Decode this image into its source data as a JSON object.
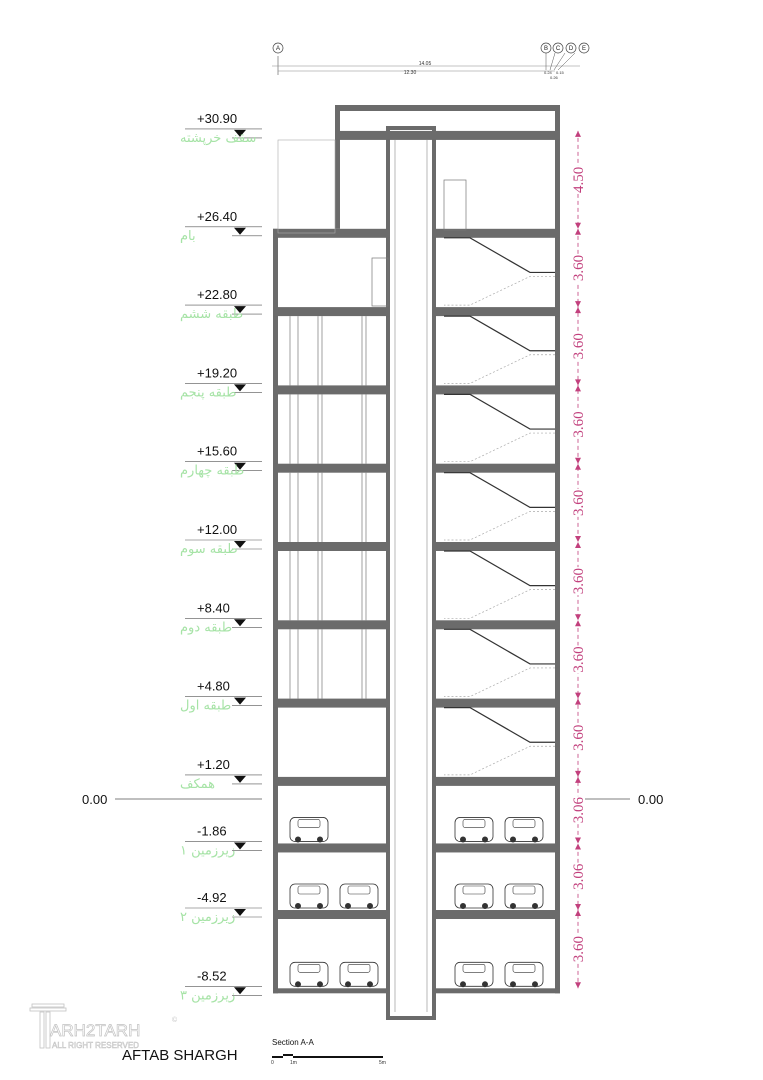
{
  "grid_axes": [
    "A",
    "B",
    "C",
    "D",
    "E"
  ],
  "top_dimensions": {
    "overall": "14.05",
    "inner": "12.30",
    "small": [
      "0.24",
      "0.15",
      "0.26"
    ]
  },
  "levels": [
    {
      "elevation": "+30.90",
      "name": "سقف خرپشته",
      "value": 30.9
    },
    {
      "elevation": "+26.40",
      "name": "بام",
      "value": 26.4
    },
    {
      "elevation": "+22.80",
      "name": "طبقه ششم",
      "value": 22.8
    },
    {
      "elevation": "+19.20",
      "name": "طبقه پنجم",
      "value": 19.2
    },
    {
      "elevation": "+15.60",
      "name": "طبقه چهارم",
      "value": 15.6
    },
    {
      "elevation": "+12.00",
      "name": "طبقه سوم",
      "value": 12.0
    },
    {
      "elevation": "+8.40",
      "name": "طبقه دوم",
      "value": 8.4
    },
    {
      "elevation": "+4.80",
      "name": "طبقه اول",
      "value": 4.8
    },
    {
      "elevation": "+1.20",
      "name": "همکف",
      "value": 1.2
    },
    {
      "elevation": "-1.86",
      "name": "زیرزمین ۱",
      "value": -1.86
    },
    {
      "elevation": "-4.92",
      "name": "زیرزمین ۲",
      "value": -4.92
    },
    {
      "elevation": "-8.52",
      "name": "زیرزمین ۳",
      "value": -8.52
    }
  ],
  "ground_level": {
    "left": "0.00",
    "right": "0.00"
  },
  "floor_heights": [
    "4.50",
    "3.60",
    "3.60",
    "3.60",
    "3.60",
    "3.60",
    "3.60",
    "3.60",
    "3.06",
    "3.06",
    "3.60"
  ],
  "title": "AFTAB SHARGH",
  "section_label": "Section A-A",
  "scale_bar": {
    "labels": [
      "0",
      "1m",
      "5m"
    ]
  },
  "logo": {
    "name": "ARH2TARH",
    "sub": "ALL RIGHT RESERVED"
  },
  "colors": {
    "dimension": "#c2407d",
    "level_name": "#a6e3a6",
    "slab": "#6b6b6b"
  }
}
